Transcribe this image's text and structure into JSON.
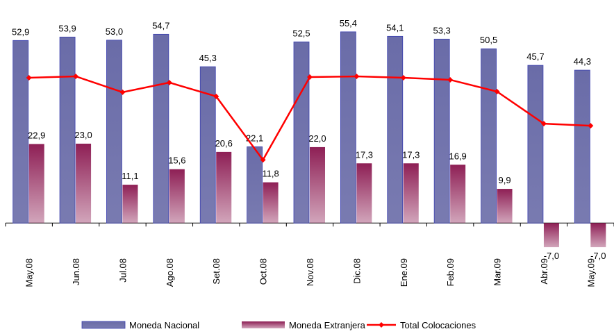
{
  "chart_data": {
    "type": "bar-line",
    "categories": [
      "May.08",
      "Jun.08",
      "Jul.08",
      "Ago.08",
      "Set.08",
      "Oct.08",
      "Nov.08",
      "Dic.08",
      "Ene.09",
      "Feb.09",
      "Mar.09",
      "Abr.09",
      "May.09"
    ],
    "series": [
      {
        "name": "Moneda Nacional",
        "type": "bar",
        "color": "#6a6ca8",
        "values": [
          52.9,
          53.9,
          53.0,
          54.7,
          45.3,
          22.1,
          52.5,
          55.4,
          54.1,
          53.3,
          50.5,
          45.7,
          44.3
        ],
        "value_labels": [
          "52,9",
          "53,9",
          "53,0",
          "54,7",
          "45,3",
          "22,1",
          "52,5",
          "55,4",
          "54,1",
          "53,3",
          "50,5",
          "45,7",
          "44,3"
        ]
      },
      {
        "name": "Moneda Extranjera",
        "type": "bar",
        "color": "#8e1f55",
        "values": [
          22.9,
          23.0,
          11.1,
          15.6,
          20.6,
          11.8,
          22.0,
          17.3,
          17.3,
          16.9,
          9.9,
          -7.0,
          -7.0
        ],
        "value_labels": [
          "22,9",
          "23,0",
          "11,1",
          "15,6",
          "20,6",
          "11,8",
          "22,0",
          "17,3",
          "17,3",
          "16,9",
          "9,9",
          "-7,0",
          "-7,0"
        ]
      },
      {
        "name": "Total Colocaciones",
        "type": "line",
        "color": "#ff0000",
        "values": [
          42.1,
          42.5,
          37.9,
          40.7,
          36.7,
          18.3,
          42.3,
          42.5,
          42.1,
          41.5,
          38.1,
          28.8,
          28.2
        ]
      }
    ],
    "ylim": [
      -10,
      60
    ]
  }
}
